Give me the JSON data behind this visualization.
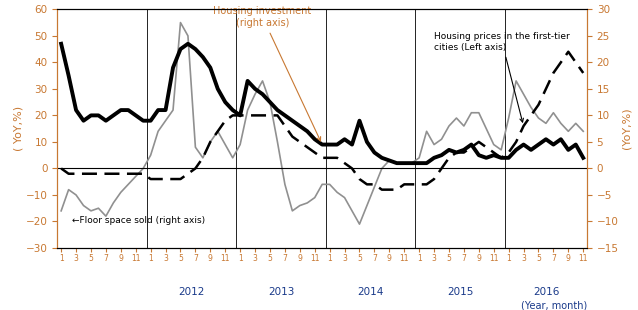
{
  "left_ylabel": "( YoY,%)",
  "right_ylabel": "(YoY,%)",
  "xlabel": "(Year, month)",
  "left_ylim": [
    -30,
    60
  ],
  "right_ylim": [
    -15,
    30
  ],
  "left_yticks": [
    -30,
    -20,
    -10,
    0,
    10,
    20,
    30,
    40,
    50,
    60
  ],
  "right_yticks": [
    -15,
    -10,
    -5,
    0,
    5,
    10,
    15,
    20,
    25,
    30
  ],
  "n_months": 71,
  "floor_space_label": "←Floor space sold (right axis)",
  "housing_inv_label": "Housing investment\n(right axis)",
  "housing_price_label": "Housing prices in the first-tier\ncities (Left axis)",
  "inv_color": "#c87832",
  "axis_label_color": "#c87832",
  "year_label_color": "#1a3a8a",
  "floor_color": "#909090",
  "inv_linewidth": 2.8,
  "price_linewidth": 1.8,
  "floor_linewidth": 1.2,
  "housing_investment": [
    47,
    35,
    22,
    18,
    20,
    20,
    18,
    20,
    22,
    22,
    20,
    18,
    18,
    22,
    22,
    38,
    45,
    47,
    45,
    42,
    38,
    30,
    25,
    22,
    20,
    33,
    30,
    28,
    25,
    22,
    20,
    18,
    16,
    14,
    11,
    9,
    9,
    9,
    11,
    9,
    18,
    10,
    6,
    4,
    3,
    2,
    2,
    2,
    2,
    2,
    4,
    5,
    7,
    6,
    7,
    9,
    5,
    4,
    5,
    4,
    4,
    7,
    9,
    7,
    9,
    11,
    9,
    11,
    7,
    9,
    4
  ],
  "floor_space_sold": [
    -16,
    -8,
    -10,
    -14,
    -16,
    -15,
    -18,
    -13,
    -9,
    -6,
    -3,
    0,
    5,
    14,
    18,
    22,
    55,
    50,
    8,
    4,
    10,
    14,
    9,
    4,
    9,
    22,
    28,
    33,
    25,
    10,
    -6,
    -16,
    -14,
    -13,
    -11,
    -6,
    -6,
    -9,
    -11,
    -16,
    -21,
    -14,
    -7,
    0,
    3,
    2,
    2,
    2,
    4,
    14,
    9,
    11,
    16,
    19,
    16,
    21,
    21,
    15,
    9,
    7,
    19,
    33,
    28,
    23,
    19,
    17,
    21,
    17,
    14,
    17,
    14
  ],
  "housing_price": [
    0,
    -1,
    -1,
    -1,
    -1,
    -1,
    -1,
    -1,
    -1,
    -1,
    -1,
    -1,
    -2,
    -2,
    -2,
    -2,
    -2,
    -1,
    0,
    2,
    5,
    7,
    9,
    10,
    10,
    10,
    10,
    10,
    10,
    10,
    8,
    6,
    5,
    4,
    3,
    2,
    2,
    2,
    1,
    0,
    -2,
    -3,
    -3,
    -4,
    -4,
    -4,
    -3,
    -3,
    -3,
    -3,
    -2,
    0,
    2,
    3,
    3,
    4,
    5,
    4,
    3,
    2,
    3,
    5,
    8,
    10,
    12,
    15,
    18,
    20,
    22,
    20,
    18
  ],
  "year_boundaries": [
    11.5,
    23.5,
    35.5,
    47.5,
    59.5
  ],
  "year_labels": [
    "2012",
    "2013",
    "2014",
    "2015",
    "2016"
  ],
  "year_centers": [
    17.5,
    29.5,
    41.5,
    53.5,
    65.0
  ]
}
